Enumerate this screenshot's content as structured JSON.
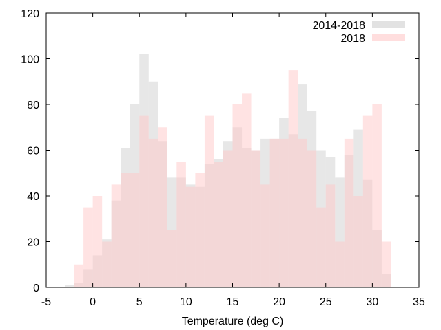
{
  "chart_data": {
    "type": "bar",
    "xlabel": "Temperature (deg C)",
    "ylabel": "",
    "title": "",
    "xlim": [
      -5,
      35
    ],
    "ylim": [
      0,
      120
    ],
    "xticks": [
      -5,
      0,
      5,
      10,
      15,
      20,
      25,
      30,
      35
    ],
    "yticks": [
      0,
      20,
      40,
      60,
      80,
      100,
      120
    ],
    "bin_width": 1,
    "legend_position": "top-right",
    "series": [
      {
        "name": "2014-2018",
        "color": "#d3d3d3",
        "opacity": 0.55,
        "bins": [
          {
            "x": -2.5,
            "y": 1
          },
          {
            "x": -1.5,
            "y": 2
          },
          {
            "x": -0.5,
            "y": 8
          },
          {
            "x": 0.5,
            "y": 14
          },
          {
            "x": 1.5,
            "y": 21
          },
          {
            "x": 2.5,
            "y": 38
          },
          {
            "x": 3.5,
            "y": 61
          },
          {
            "x": 4.5,
            "y": 80
          },
          {
            "x": 5.5,
            "y": 102
          },
          {
            "x": 6.5,
            "y": 90
          },
          {
            "x": 7.5,
            "y": 64
          },
          {
            "x": 8.5,
            "y": 48
          },
          {
            "x": 9.5,
            "y": 48
          },
          {
            "x": 10.5,
            "y": 45
          },
          {
            "x": 11.5,
            "y": 44
          },
          {
            "x": 12.5,
            "y": 54
          },
          {
            "x": 13.5,
            "y": 56
          },
          {
            "x": 14.5,
            "y": 64
          },
          {
            "x": 15.5,
            "y": 70
          },
          {
            "x": 16.5,
            "y": 61
          },
          {
            "x": 17.5,
            "y": 60
          },
          {
            "x": 18.5,
            "y": 65
          },
          {
            "x": 19.5,
            "y": 65
          },
          {
            "x": 20.5,
            "y": 74
          },
          {
            "x": 21.5,
            "y": 67
          },
          {
            "x": 22.5,
            "y": 89
          },
          {
            "x": 23.5,
            "y": 77
          },
          {
            "x": 24.5,
            "y": 60
          },
          {
            "x": 25.5,
            "y": 57
          },
          {
            "x": 26.5,
            "y": 48
          },
          {
            "x": 27.5,
            "y": 58
          },
          {
            "x": 28.5,
            "y": 69
          },
          {
            "x": 29.5,
            "y": 47
          },
          {
            "x": 30.5,
            "y": 25
          },
          {
            "x": 31.5,
            "y": 6
          }
        ]
      },
      {
        "name": "2018",
        "color": "#ffc8c8",
        "opacity": 0.5,
        "bins": [
          {
            "x": -1.5,
            "y": 10
          },
          {
            "x": -0.5,
            "y": 35
          },
          {
            "x": 0.5,
            "y": 40
          },
          {
            "x": 1.5,
            "y": 20
          },
          {
            "x": 2.5,
            "y": 45
          },
          {
            "x": 3.5,
            "y": 50
          },
          {
            "x": 4.5,
            "y": 50
          },
          {
            "x": 5.5,
            "y": 75
          },
          {
            "x": 6.5,
            "y": 65
          },
          {
            "x": 7.5,
            "y": 70
          },
          {
            "x": 8.5,
            "y": 25
          },
          {
            "x": 9.5,
            "y": 55
          },
          {
            "x": 10.5,
            "y": 44
          },
          {
            "x": 11.5,
            "y": 50
          },
          {
            "x": 12.5,
            "y": 75
          },
          {
            "x": 13.5,
            "y": 55
          },
          {
            "x": 14.5,
            "y": 60
          },
          {
            "x": 15.5,
            "y": 80
          },
          {
            "x": 16.5,
            "y": 85
          },
          {
            "x": 17.5,
            "y": 60
          },
          {
            "x": 18.5,
            "y": 45
          },
          {
            "x": 19.5,
            "y": 65
          },
          {
            "x": 20.5,
            "y": 65
          },
          {
            "x": 21.5,
            "y": 95
          },
          {
            "x": 22.5,
            "y": 65
          },
          {
            "x": 23.5,
            "y": 60
          },
          {
            "x": 24.5,
            "y": 35
          },
          {
            "x": 25.5,
            "y": 45
          },
          {
            "x": 26.5,
            "y": 20
          },
          {
            "x": 27.5,
            "y": 65
          },
          {
            "x": 28.5,
            "y": 40
          },
          {
            "x": 29.5,
            "y": 75
          },
          {
            "x": 30.5,
            "y": 80
          },
          {
            "x": 31.5,
            "y": 20
          }
        ]
      }
    ]
  }
}
